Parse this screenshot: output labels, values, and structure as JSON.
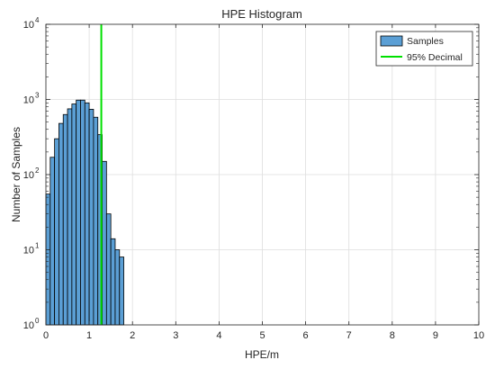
{
  "chart_data": {
    "type": "bar",
    "title": "HPE Histogram",
    "xlabel": "HPE/m",
    "ylabel": "Number of Samples",
    "xlim": [
      0,
      10
    ],
    "ylim": [
      1,
      10000
    ],
    "y_scale": "log",
    "grid": true,
    "legend_position": "top-right",
    "x_ticks": [
      "0",
      "1",
      "2",
      "3",
      "4",
      "5",
      "6",
      "7",
      "8",
      "9",
      "10"
    ],
    "y_ticks": [
      {
        "base": "10",
        "exp": "0"
      },
      {
        "base": "10",
        "exp": "1"
      },
      {
        "base": "10",
        "exp": "2"
      },
      {
        "base": "10",
        "exp": "3"
      },
      {
        "base": "10",
        "exp": "4"
      }
    ],
    "series": [
      {
        "name": "Samples",
        "color": "#5b9fd5",
        "edge_color": "#000000",
        "bin_width": 0.1,
        "bin_starts": [
          0.0,
          0.1,
          0.2,
          0.3,
          0.4,
          0.5,
          0.6,
          0.7,
          0.8,
          0.9,
          1.0,
          1.1,
          1.2,
          1.3,
          1.4,
          1.5,
          1.6,
          1.7
        ],
        "counts": [
          55,
          170,
          300,
          480,
          630,
          750,
          870,
          980,
          980,
          900,
          740,
          580,
          340,
          150,
          30,
          14,
          10,
          8
        ]
      },
      {
        "name": "95% Decimal",
        "color": "#00e000",
        "type": "vertical-line",
        "x": 1.28
      }
    ]
  }
}
